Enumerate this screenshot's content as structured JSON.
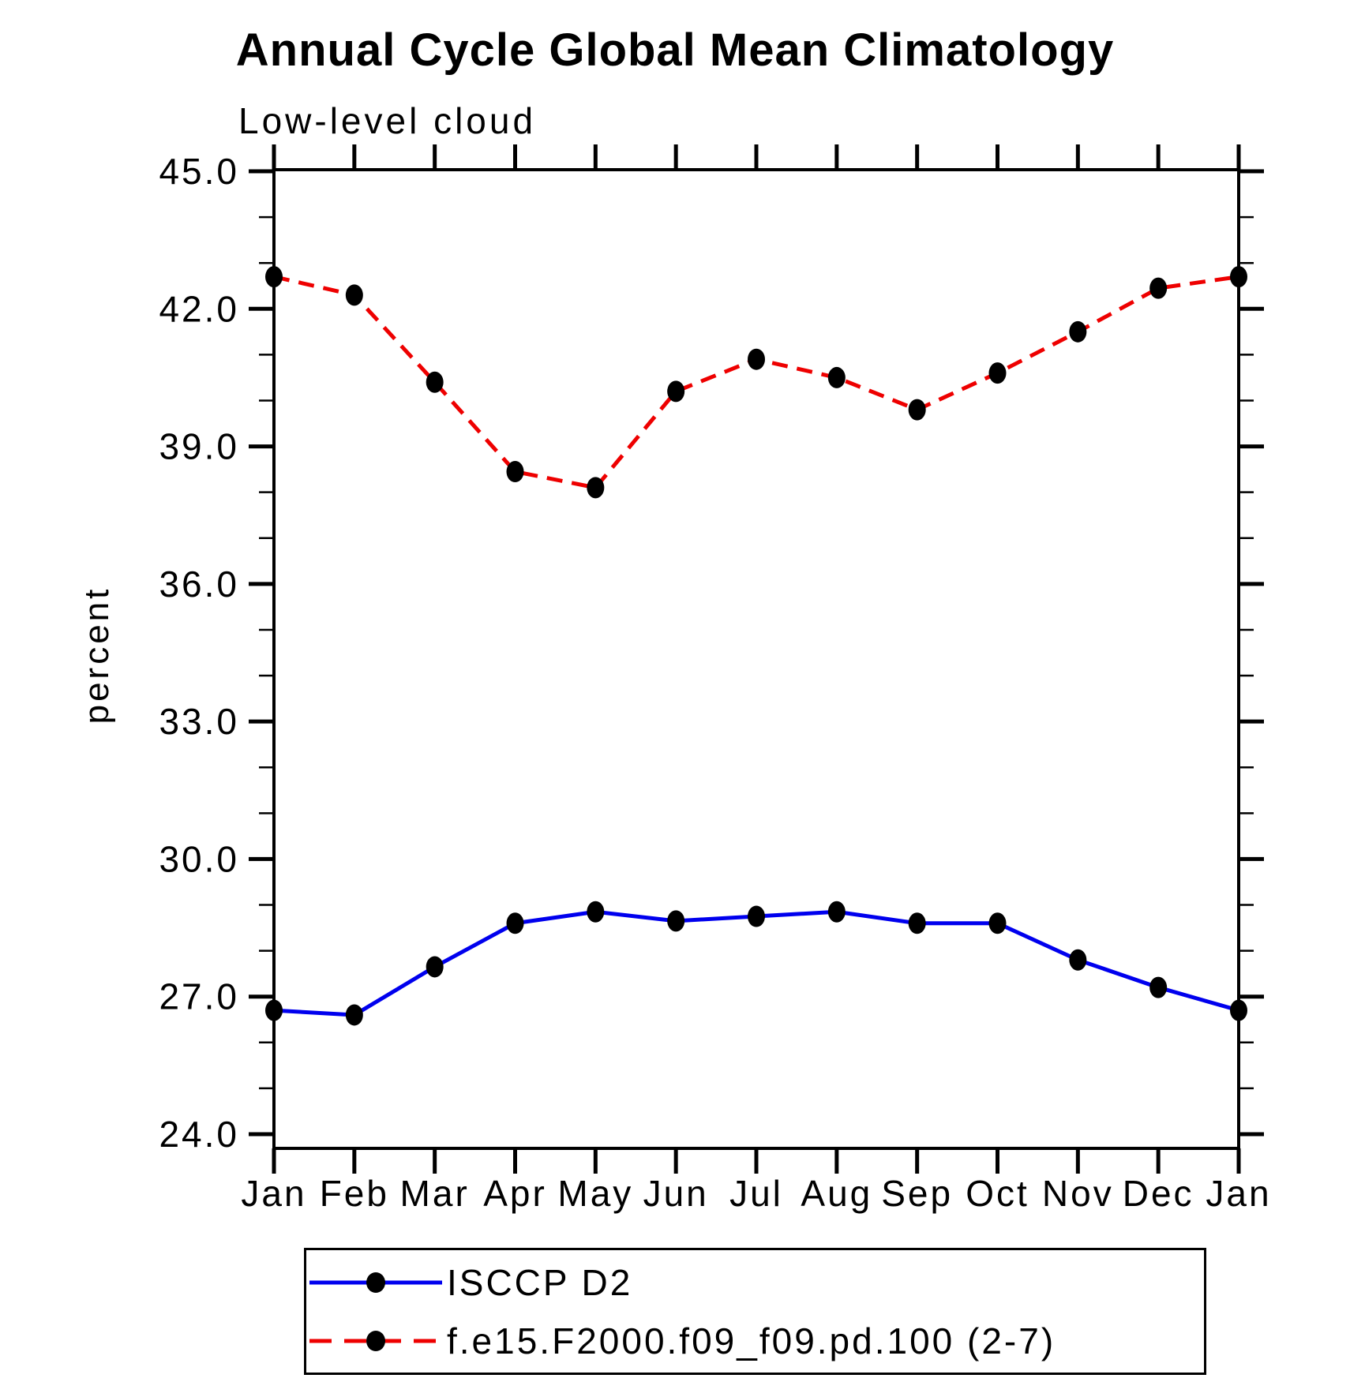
{
  "chart_data": {
    "type": "line",
    "title": "Annual Cycle Global Mean Climatology",
    "subtitle": "Low-level cloud",
    "ylabel": "percent",
    "categories": [
      "Jan",
      "Feb",
      "Mar",
      "Apr",
      "May",
      "Jun",
      "Jul",
      "Aug",
      "Sep",
      "Oct",
      "Nov",
      "Dec",
      "Jan"
    ],
    "series": [
      {
        "name": "ISCCP D2",
        "color": "#0000EE",
        "line_style": "solid",
        "marker": "circle",
        "marker_color": "#000000",
        "values": [
          26.7,
          26.6,
          27.65,
          28.6,
          28.85,
          28.65,
          28.75,
          28.85,
          28.6,
          28.6,
          27.8,
          27.2,
          26.7
        ]
      },
      {
        "name": "f.e15.F2000.f09_f09.pd.100 (2-7)",
        "color": "#EE0000",
        "line_style": "dashed",
        "marker": "circle",
        "marker_color": "#000000",
        "values": [
          42.7,
          42.3,
          40.4,
          38.45,
          38.1,
          40.2,
          40.9,
          40.5,
          39.8,
          40.6,
          41.5,
          42.45,
          42.7
        ]
      }
    ],
    "y_axis": {
      "major_ticks": [
        24,
        27,
        30,
        33,
        36,
        39,
        42,
        45
      ],
      "major_tick_labels": [
        "24.0",
        "27.0",
        "30.0",
        "33.0",
        "36.0",
        "39.0",
        "42.0",
        "45.0"
      ],
      "minor_tick_interval": 1,
      "range": [
        24,
        45
      ]
    },
    "grid": false,
    "legend_position": "bottom"
  }
}
